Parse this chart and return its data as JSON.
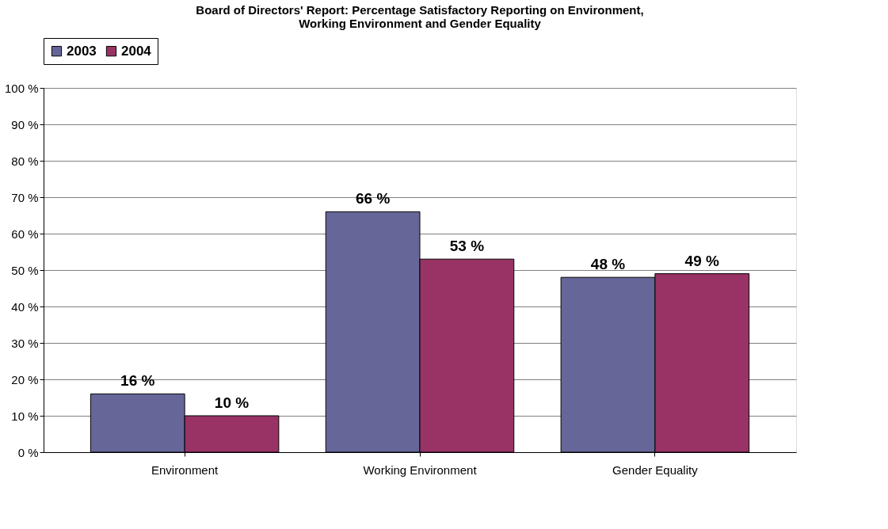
{
  "chart_data": {
    "type": "bar",
    "title": "Board of Directors' Report: Percentage Satisfactory Reporting on Environment, Working Environment and Gender Equality",
    "categories": [
      "Environment",
      "Working Environment",
      "Gender Equality"
    ],
    "series": [
      {
        "name": "2003",
        "color": "#666699",
        "values": [
          16,
          66,
          48
        ],
        "value_labels": [
          "16 %",
          "66 %",
          "48 %"
        ]
      },
      {
        "name": "2004",
        "color": "#993366",
        "values": [
          10,
          53,
          49
        ],
        "value_labels": [
          "10 %",
          "53 %",
          "49 %"
        ]
      }
    ],
    "ylim": [
      0,
      100
    ],
    "yticks": [
      {
        "value": 0,
        "label": "0 %"
      },
      {
        "value": 10,
        "label": "10 %"
      },
      {
        "value": 20,
        "label": "20 %"
      },
      {
        "value": 30,
        "label": "30 %"
      },
      {
        "value": 40,
        "label": "40 %"
      },
      {
        "value": 50,
        "label": "50 %"
      },
      {
        "value": 60,
        "label": "60 %"
      },
      {
        "value": 70,
        "label": "70 %"
      },
      {
        "value": 80,
        "label": "80 %"
      },
      {
        "value": 90,
        "label": "90 %"
      },
      {
        "value": 100,
        "label": "100 %"
      }
    ],
    "grid": "y",
    "legend": "top"
  }
}
